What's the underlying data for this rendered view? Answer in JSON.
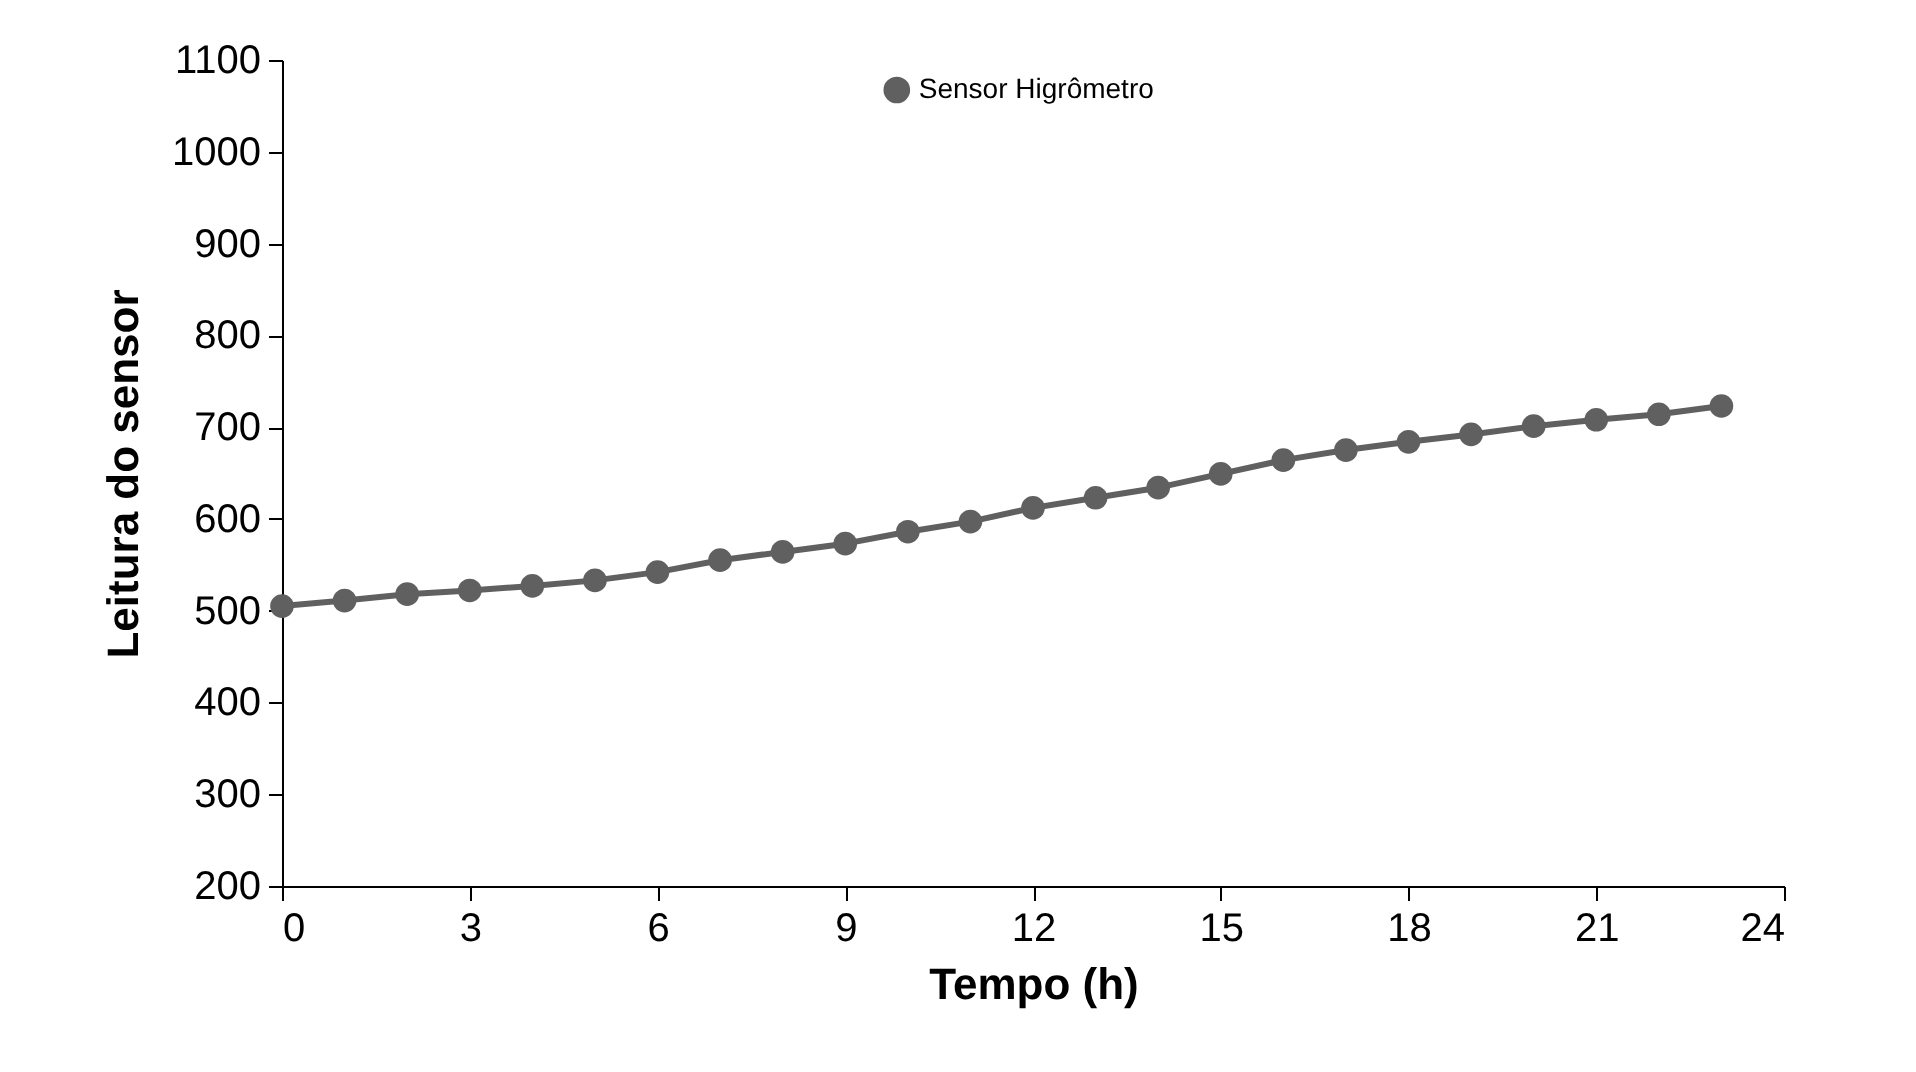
{
  "chart_data": {
    "type": "line",
    "xlabel": "Tempo (h)",
    "ylabel": "Leitura do sensor",
    "x": [
      0,
      1,
      2,
      3,
      4,
      5,
      6,
      7,
      8,
      9,
      10,
      11,
      12,
      13,
      14,
      15,
      16,
      17,
      18,
      19,
      20,
      21,
      22,
      23
    ],
    "series": [
      {
        "name": "Sensor Higrômetro",
        "color": "#606060",
        "values": [
          505,
          511,
          518,
          522,
          527,
          533,
          542,
          555,
          564,
          573,
          586,
          597,
          612,
          623,
          634,
          649,
          664,
          675,
          684,
          692,
          701,
          708,
          714,
          723
        ]
      }
    ],
    "xlim": [
      0,
      24
    ],
    "xticks": [
      0,
      3,
      6,
      9,
      12,
      15,
      18,
      21,
      24
    ],
    "ylim": [
      200,
      1100
    ],
    "yticks": [
      200,
      300,
      400,
      500,
      600,
      700,
      800,
      900,
      1000,
      1100
    ],
    "grid": false,
    "legend": "top",
    "marker": "circle",
    "line_style": "solid"
  }
}
